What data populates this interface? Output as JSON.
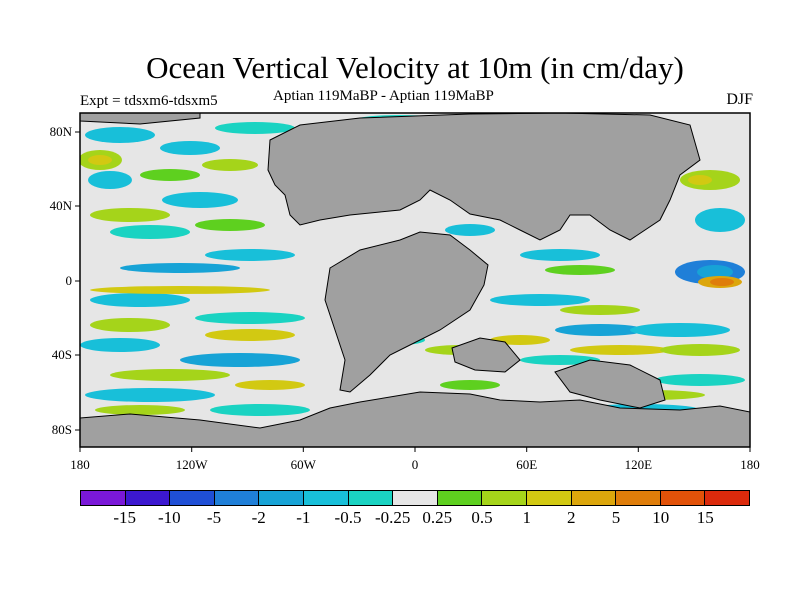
{
  "title": "Ocean Vertical Velocity at 10m (in cm/day)",
  "experiment": "Expt = tdsxm6-tdsxm5",
  "comparison": "Aptian  119MaBP - Aptian  119MaBP",
  "season": "DJF",
  "lat_labels": [
    "80N",
    "40N",
    "0",
    "40S",
    "80S"
  ],
  "lon_labels": [
    "180",
    "120W",
    "60W",
    "0",
    "60E",
    "120E",
    "180"
  ],
  "colorbar": {
    "levels": [
      "-15",
      "-10",
      "-5",
      "-2",
      "-1",
      "-0.5",
      "-0.25",
      "0.25",
      "0.5",
      "1",
      "2",
      "5",
      "10",
      "15"
    ],
    "colors": [
      "#7a18d8",
      "#3c18d0",
      "#1f4fd6",
      "#1f7fd8",
      "#17a3d6",
      "#18bfd9",
      "#1ad3c2",
      "#e6e6e6",
      "#5ed01f",
      "#a5d41a",
      "#d2c912",
      "#dca60c",
      "#df7d0a",
      "#e25209",
      "#dc2a0c"
    ]
  },
  "colors": {
    "land": "#a0a0a0",
    "ocean_neutral": "#e6e6e6"
  }
}
